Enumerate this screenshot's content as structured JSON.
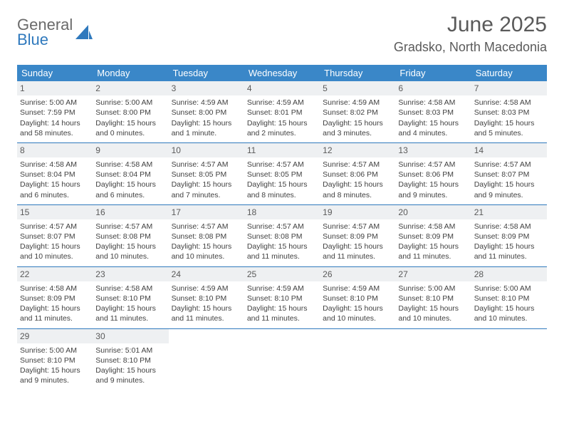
{
  "brand": {
    "part1": "General",
    "part2": "Blue"
  },
  "title": {
    "month": "June 2025",
    "location": "Gradsko, North Macedonia"
  },
  "colors": {
    "header_bg": "#3a87c8",
    "header_text": "#ffffff",
    "rule": "#2f79bd",
    "daynum_bg": "#eef0f2",
    "body_text": "#414141",
    "title_text": "#5a5a5a",
    "logo_gray": "#6a6a6a",
    "logo_blue": "#2f79bd",
    "page_bg": "#ffffff"
  },
  "typography": {
    "month_fontsize": 30,
    "location_fontsize": 18,
    "head_fontsize": 13,
    "cell_fontsize": 10.5,
    "daynum_fontsize": 12
  },
  "weekdays": [
    "Sunday",
    "Monday",
    "Tuesday",
    "Wednesday",
    "Thursday",
    "Friday",
    "Saturday"
  ],
  "days": [
    {
      "n": "1",
      "sr": "Sunrise: 5:00 AM",
      "ss": "Sunset: 7:59 PM",
      "d1": "Daylight: 14 hours",
      "d2": "and 58 minutes."
    },
    {
      "n": "2",
      "sr": "Sunrise: 5:00 AM",
      "ss": "Sunset: 8:00 PM",
      "d1": "Daylight: 15 hours",
      "d2": "and 0 minutes."
    },
    {
      "n": "3",
      "sr": "Sunrise: 4:59 AM",
      "ss": "Sunset: 8:00 PM",
      "d1": "Daylight: 15 hours",
      "d2": "and 1 minute."
    },
    {
      "n": "4",
      "sr": "Sunrise: 4:59 AM",
      "ss": "Sunset: 8:01 PM",
      "d1": "Daylight: 15 hours",
      "d2": "and 2 minutes."
    },
    {
      "n": "5",
      "sr": "Sunrise: 4:59 AM",
      "ss": "Sunset: 8:02 PM",
      "d1": "Daylight: 15 hours",
      "d2": "and 3 minutes."
    },
    {
      "n": "6",
      "sr": "Sunrise: 4:58 AM",
      "ss": "Sunset: 8:03 PM",
      "d1": "Daylight: 15 hours",
      "d2": "and 4 minutes."
    },
    {
      "n": "7",
      "sr": "Sunrise: 4:58 AM",
      "ss": "Sunset: 8:03 PM",
      "d1": "Daylight: 15 hours",
      "d2": "and 5 minutes."
    },
    {
      "n": "8",
      "sr": "Sunrise: 4:58 AM",
      "ss": "Sunset: 8:04 PM",
      "d1": "Daylight: 15 hours",
      "d2": "and 6 minutes."
    },
    {
      "n": "9",
      "sr": "Sunrise: 4:58 AM",
      "ss": "Sunset: 8:04 PM",
      "d1": "Daylight: 15 hours",
      "d2": "and 6 minutes."
    },
    {
      "n": "10",
      "sr": "Sunrise: 4:57 AM",
      "ss": "Sunset: 8:05 PM",
      "d1": "Daylight: 15 hours",
      "d2": "and 7 minutes."
    },
    {
      "n": "11",
      "sr": "Sunrise: 4:57 AM",
      "ss": "Sunset: 8:05 PM",
      "d1": "Daylight: 15 hours",
      "d2": "and 8 minutes."
    },
    {
      "n": "12",
      "sr": "Sunrise: 4:57 AM",
      "ss": "Sunset: 8:06 PM",
      "d1": "Daylight: 15 hours",
      "d2": "and 8 minutes."
    },
    {
      "n": "13",
      "sr": "Sunrise: 4:57 AM",
      "ss": "Sunset: 8:06 PM",
      "d1": "Daylight: 15 hours",
      "d2": "and 9 minutes."
    },
    {
      "n": "14",
      "sr": "Sunrise: 4:57 AM",
      "ss": "Sunset: 8:07 PM",
      "d1": "Daylight: 15 hours",
      "d2": "and 9 minutes."
    },
    {
      "n": "15",
      "sr": "Sunrise: 4:57 AM",
      "ss": "Sunset: 8:07 PM",
      "d1": "Daylight: 15 hours",
      "d2": "and 10 minutes."
    },
    {
      "n": "16",
      "sr": "Sunrise: 4:57 AM",
      "ss": "Sunset: 8:08 PM",
      "d1": "Daylight: 15 hours",
      "d2": "and 10 minutes."
    },
    {
      "n": "17",
      "sr": "Sunrise: 4:57 AM",
      "ss": "Sunset: 8:08 PM",
      "d1": "Daylight: 15 hours",
      "d2": "and 10 minutes."
    },
    {
      "n": "18",
      "sr": "Sunrise: 4:57 AM",
      "ss": "Sunset: 8:08 PM",
      "d1": "Daylight: 15 hours",
      "d2": "and 11 minutes."
    },
    {
      "n": "19",
      "sr": "Sunrise: 4:57 AM",
      "ss": "Sunset: 8:09 PM",
      "d1": "Daylight: 15 hours",
      "d2": "and 11 minutes."
    },
    {
      "n": "20",
      "sr": "Sunrise: 4:58 AM",
      "ss": "Sunset: 8:09 PM",
      "d1": "Daylight: 15 hours",
      "d2": "and 11 minutes."
    },
    {
      "n": "21",
      "sr": "Sunrise: 4:58 AM",
      "ss": "Sunset: 8:09 PM",
      "d1": "Daylight: 15 hours",
      "d2": "and 11 minutes."
    },
    {
      "n": "22",
      "sr": "Sunrise: 4:58 AM",
      "ss": "Sunset: 8:09 PM",
      "d1": "Daylight: 15 hours",
      "d2": "and 11 minutes."
    },
    {
      "n": "23",
      "sr": "Sunrise: 4:58 AM",
      "ss": "Sunset: 8:10 PM",
      "d1": "Daylight: 15 hours",
      "d2": "and 11 minutes."
    },
    {
      "n": "24",
      "sr": "Sunrise: 4:59 AM",
      "ss": "Sunset: 8:10 PM",
      "d1": "Daylight: 15 hours",
      "d2": "and 11 minutes."
    },
    {
      "n": "25",
      "sr": "Sunrise: 4:59 AM",
      "ss": "Sunset: 8:10 PM",
      "d1": "Daylight: 15 hours",
      "d2": "and 11 minutes."
    },
    {
      "n": "26",
      "sr": "Sunrise: 4:59 AM",
      "ss": "Sunset: 8:10 PM",
      "d1": "Daylight: 15 hours",
      "d2": "and 10 minutes."
    },
    {
      "n": "27",
      "sr": "Sunrise: 5:00 AM",
      "ss": "Sunset: 8:10 PM",
      "d1": "Daylight: 15 hours",
      "d2": "and 10 minutes."
    },
    {
      "n": "28",
      "sr": "Sunrise: 5:00 AM",
      "ss": "Sunset: 8:10 PM",
      "d1": "Daylight: 15 hours",
      "d2": "and 10 minutes."
    },
    {
      "n": "29",
      "sr": "Sunrise: 5:00 AM",
      "ss": "Sunset: 8:10 PM",
      "d1": "Daylight: 15 hours",
      "d2": "and 9 minutes."
    },
    {
      "n": "30",
      "sr": "Sunrise: 5:01 AM",
      "ss": "Sunset: 8:10 PM",
      "d1": "Daylight: 15 hours",
      "d2": "and 9 minutes."
    }
  ]
}
